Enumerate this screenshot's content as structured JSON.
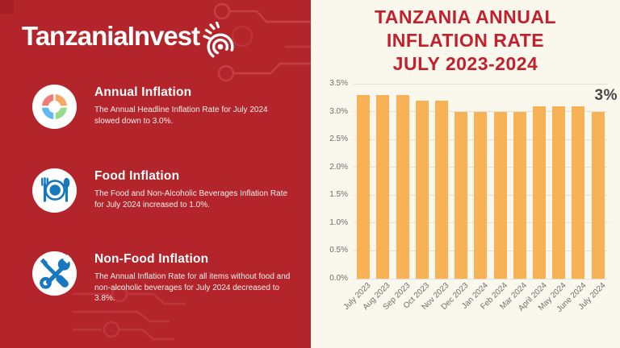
{
  "brand": {
    "logo_text": "TanzaniaInvest",
    "items": [
      {
        "icon": "pie-chart-icon",
        "title": "Annual Inflation",
        "body": "The Annual Headline Inflation Rate for July 2024 slowed down to 3.0%."
      },
      {
        "icon": "dining-icon",
        "title": "Food Inflation",
        "body": "The Food and Non-Alcoholic Beverages Inflation Rate for July 2024 increased to 1.0%."
      },
      {
        "icon": "tools-icon",
        "title": "Non-Food Inflation",
        "body": "The Annual Inflation Rate for all items without food and non-alcoholic beverages for July 2024 decreased to 3.8%."
      }
    ]
  },
  "chart": {
    "title_lines": [
      "TANZANIA ANNUAL",
      "INFLATION RATE",
      "JULY 2023-2024"
    ],
    "annotation": "3%"
  },
  "chart_data": {
    "type": "bar",
    "title": "TANZANIA ANNUAL INFLATION RATE JULY 2023-2024",
    "categories": [
      "July 2023",
      "Aug 2023",
      "Sep 2023",
      "Oct 2023",
      "Nov 2023",
      "Dec 2023",
      "Jan 2024",
      "Feb 2024",
      "Mar 2024",
      "April 2024",
      "May 2024",
      "June 2024",
      "July 2024"
    ],
    "values": [
      3.3,
      3.3,
      3.3,
      3.2,
      3.2,
      3.0,
      3.0,
      3.0,
      3.0,
      3.1,
      3.1,
      3.1,
      3.0
    ],
    "unit": "%",
    "xlabel": "",
    "ylabel": "",
    "ylim": [
      0,
      3.5
    ],
    "yticks": [
      "3.5%",
      "3.0%",
      "2.5%",
      "2.0%",
      "1.5%",
      "1.0%",
      "0.5%",
      "0.0%"
    ],
    "grid": true,
    "legend": false,
    "annotation": {
      "text": "3%",
      "category": "July 2024"
    },
    "bar_color": "#F8B155"
  },
  "colors": {
    "panel_red": "#B4252B",
    "circuit_red": "#C7474E",
    "title_red": "#C2202C",
    "bar_orange": "#F8B155",
    "gridline": "#E4E1D4",
    "icon_blue": "#1878BE",
    "annotation_gray": "#474747",
    "background_cream": "#FAF7EC",
    "pie_red": "#EF7B7B",
    "pie_orange": "#F5A863",
    "pie_green": "#97DB8E",
    "pie_blue": "#66B9EE"
  }
}
